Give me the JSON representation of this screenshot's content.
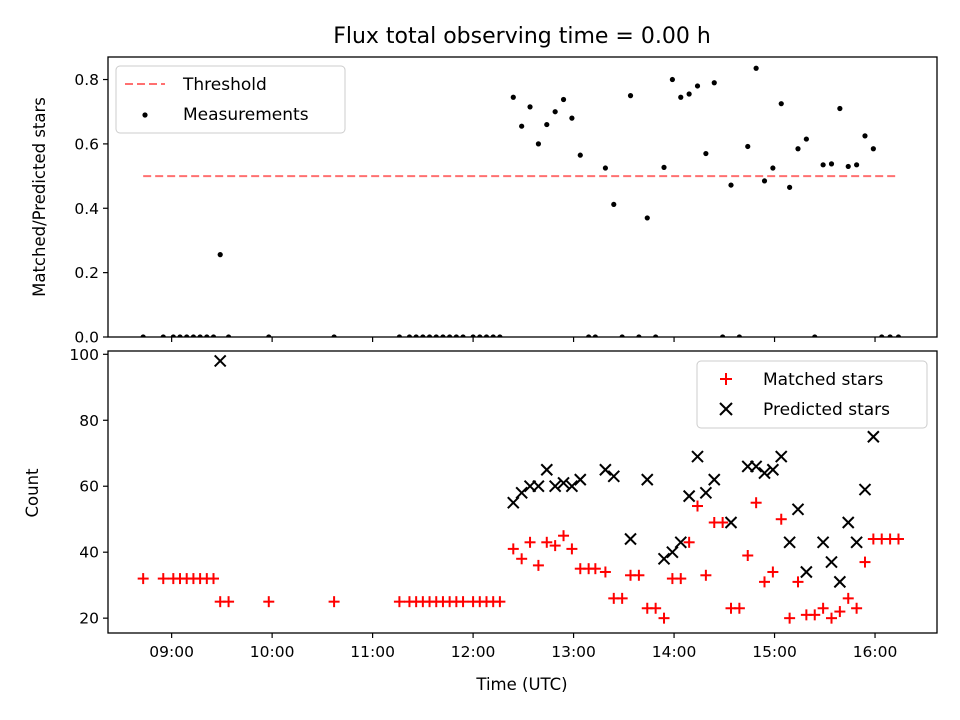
{
  "chart_data": [
    {
      "type": "scatter",
      "title": "Flux total observing time = 0.00 h",
      "xlabel": "",
      "ylabel": "Matched/Predicted stars",
      "xlim": [
        "08:22",
        "16:37"
      ],
      "ylim": [
        0,
        0.87
      ],
      "xticks": [
        "09:00",
        "10:00",
        "11:00",
        "12:00",
        "13:00",
        "14:00",
        "15:00",
        "16:00"
      ],
      "show_xticklabels": false,
      "yticks": [
        "0.0",
        "0.2",
        "0.4",
        "0.6",
        "0.8"
      ],
      "legend_position": "upper left",
      "series": [
        {
          "name": "Threshold",
          "kind": "dashed-line",
          "color": "#ff7070",
          "x": [
            "08:43",
            "16:13"
          ],
          "y": [
            0.5,
            0.5
          ]
        },
        {
          "name": "Measurements",
          "kind": "dots",
          "color": "#000000",
          "points": [
            [
              "08:43",
              0.0
            ],
            [
              "08:55",
              0.0
            ],
            [
              "09:01",
              0.0
            ],
            [
              "09:05",
              0.0
            ],
            [
              "09:09",
              0.0
            ],
            [
              "09:13",
              0.0
            ],
            [
              "09:17",
              0.0
            ],
            [
              "09:21",
              0.0
            ],
            [
              "09:25",
              0.0
            ],
            [
              "09:29",
              0.256
            ],
            [
              "09:34",
              0.0
            ],
            [
              "09:58",
              0.0
            ],
            [
              "10:37",
              0.0
            ],
            [
              "11:16",
              0.0
            ],
            [
              "11:22",
              0.0
            ],
            [
              "11:26",
              0.0
            ],
            [
              "11:30",
              0.0
            ],
            [
              "11:34",
              0.0
            ],
            [
              "11:38",
              0.0
            ],
            [
              "11:42",
              0.0
            ],
            [
              "11:46",
              0.0
            ],
            [
              "11:50",
              0.0
            ],
            [
              "11:54",
              0.0
            ],
            [
              "12:00",
              0.0
            ],
            [
              "12:04",
              0.0
            ],
            [
              "12:08",
              0.0
            ],
            [
              "12:12",
              0.0
            ],
            [
              "12:16",
              0.0
            ],
            [
              "12:24",
              0.745
            ],
            [
              "12:29",
              0.655
            ],
            [
              "12:34",
              0.715
            ],
            [
              "12:39",
              0.6
            ],
            [
              "12:44",
              0.66
            ],
            [
              "12:49",
              0.7
            ],
            [
              "12:54",
              0.738
            ],
            [
              "12:59",
              0.68
            ],
            [
              "13:04",
              0.565
            ],
            [
              "13:09",
              0.0
            ],
            [
              "13:13",
              0.0
            ],
            [
              "13:19",
              0.525
            ],
            [
              "13:24",
              0.412
            ],
            [
              "13:29",
              0.0
            ],
            [
              "13:34",
              0.75
            ],
            [
              "13:39",
              0.0
            ],
            [
              "13:44",
              0.37
            ],
            [
              "13:49",
              0.0
            ],
            [
              "13:54",
              0.527
            ],
            [
              "13:59",
              0.8
            ],
            [
              "14:04",
              0.745
            ],
            [
              "14:09",
              0.755
            ],
            [
              "14:14",
              0.78
            ],
            [
              "14:19",
              0.57
            ],
            [
              "14:24",
              0.79
            ],
            [
              "14:29",
              0.0
            ],
            [
              "14:34",
              0.472
            ],
            [
              "14:39",
              0.0
            ],
            [
              "14:44",
              0.592
            ],
            [
              "14:49",
              0.835
            ],
            [
              "14:54",
              0.485
            ],
            [
              "14:59",
              0.525
            ],
            [
              "15:04",
              0.725
            ],
            [
              "15:09",
              0.465
            ],
            [
              "15:14",
              0.585
            ],
            [
              "15:19",
              0.615
            ],
            [
              "15:24",
              0.0
            ],
            [
              "15:29",
              0.535
            ],
            [
              "15:34",
              0.538
            ],
            [
              "15:39",
              0.71
            ],
            [
              "15:44",
              0.53
            ],
            [
              "15:49",
              0.535
            ],
            [
              "15:54",
              0.625
            ],
            [
              "15:59",
              0.585
            ],
            [
              "16:04",
              0.0
            ],
            [
              "16:09",
              0.0
            ],
            [
              "16:14",
              0.0
            ]
          ]
        }
      ]
    },
    {
      "type": "scatter",
      "title": "",
      "xlabel": "Time (UTC)",
      "ylabel": "Count",
      "xlim": [
        "08:22",
        "16:37"
      ],
      "ylim": [
        15.5,
        101
      ],
      "xticks": [
        "09:00",
        "10:00",
        "11:00",
        "12:00",
        "13:00",
        "14:00",
        "15:00",
        "16:00"
      ],
      "yticks": [
        "20",
        "40",
        "60",
        "80",
        "100"
      ],
      "legend_position": "upper right",
      "series": [
        {
          "name": "Matched stars",
          "marker": "plus",
          "color": "#ff0000",
          "points": [
            [
              "08:43",
              32
            ],
            [
              "08:55",
              32
            ],
            [
              "09:01",
              32
            ],
            [
              "09:05",
              32
            ],
            [
              "09:09",
              32
            ],
            [
              "09:13",
              32
            ],
            [
              "09:17",
              32
            ],
            [
              "09:21",
              32
            ],
            [
              "09:25",
              32
            ],
            [
              "09:29",
              25
            ],
            [
              "09:34",
              25
            ],
            [
              "09:58",
              25
            ],
            [
              "10:37",
              25
            ],
            [
              "11:16",
              25
            ],
            [
              "11:22",
              25
            ],
            [
              "11:26",
              25
            ],
            [
              "11:30",
              25
            ],
            [
              "11:34",
              25
            ],
            [
              "11:38",
              25
            ],
            [
              "11:42",
              25
            ],
            [
              "11:46",
              25
            ],
            [
              "11:50",
              25
            ],
            [
              "11:54",
              25
            ],
            [
              "12:00",
              25
            ],
            [
              "12:04",
              25
            ],
            [
              "12:08",
              25
            ],
            [
              "12:12",
              25
            ],
            [
              "12:16",
              25
            ],
            [
              "12:24",
              41
            ],
            [
              "12:29",
              38
            ],
            [
              "12:34",
              43
            ],
            [
              "12:39",
              36
            ],
            [
              "12:44",
              43
            ],
            [
              "12:49",
              42
            ],
            [
              "12:54",
              45
            ],
            [
              "12:59",
              41
            ],
            [
              "13:04",
              35
            ],
            [
              "13:09",
              35
            ],
            [
              "13:13",
              35
            ],
            [
              "13:19",
              34
            ],
            [
              "13:24",
              26
            ],
            [
              "13:29",
              26
            ],
            [
              "13:34",
              33
            ],
            [
              "13:39",
              33
            ],
            [
              "13:44",
              23
            ],
            [
              "13:49",
              23
            ],
            [
              "13:54",
              20
            ],
            [
              "13:59",
              32
            ],
            [
              "14:04",
              32
            ],
            [
              "14:09",
              43
            ],
            [
              "14:14",
              54
            ],
            [
              "14:19",
              33
            ],
            [
              "14:24",
              49
            ],
            [
              "14:29",
              49
            ],
            [
              "14:34",
              23
            ],
            [
              "14:39",
              23
            ],
            [
              "14:44",
              39
            ],
            [
              "14:49",
              55
            ],
            [
              "14:54",
              31
            ],
            [
              "14:59",
              34
            ],
            [
              "15:04",
              50
            ],
            [
              "15:09",
              20
            ],
            [
              "15:14",
              31
            ],
            [
              "15:19",
              21
            ],
            [
              "15:24",
              21
            ],
            [
              "15:29",
              23
            ],
            [
              "15:34",
              20
            ],
            [
              "15:39",
              22
            ],
            [
              "15:44",
              26
            ],
            [
              "15:49",
              23
            ],
            [
              "15:54",
              37
            ],
            [
              "15:59",
              44
            ],
            [
              "16:04",
              44
            ],
            [
              "16:09",
              44
            ],
            [
              "16:14",
              44
            ]
          ]
        },
        {
          "name": "Predicted stars",
          "marker": "x",
          "color": "#000000",
          "points": [
            [
              "09:29",
              98
            ],
            [
              "12:24",
              55
            ],
            [
              "12:29",
              58
            ],
            [
              "12:34",
              60
            ],
            [
              "12:39",
              60
            ],
            [
              "12:44",
              65
            ],
            [
              "12:49",
              60
            ],
            [
              "12:54",
              61
            ],
            [
              "12:59",
              60
            ],
            [
              "13:04",
              62
            ],
            [
              "13:19",
              65
            ],
            [
              "13:24",
              63
            ],
            [
              "13:34",
              44
            ],
            [
              "13:44",
              62
            ],
            [
              "13:54",
              38
            ],
            [
              "13:59",
              40
            ],
            [
              "14:04",
              43
            ],
            [
              "14:09",
              57
            ],
            [
              "14:14",
              69
            ],
            [
              "14:19",
              58
            ],
            [
              "14:24",
              62
            ],
            [
              "14:34",
              49
            ],
            [
              "14:44",
              66
            ],
            [
              "14:49",
              66
            ],
            [
              "14:54",
              64
            ],
            [
              "14:59",
              65
            ],
            [
              "15:04",
              69
            ],
            [
              "15:09",
              43
            ],
            [
              "15:14",
              53
            ],
            [
              "15:19",
              34
            ],
            [
              "15:29",
              43
            ],
            [
              "15:34",
              37
            ],
            [
              "15:39",
              31
            ],
            [
              "15:44",
              49
            ],
            [
              "15:49",
              43
            ],
            [
              "15:54",
              59
            ],
            [
              "15:59",
              75
            ]
          ]
        }
      ]
    }
  ]
}
